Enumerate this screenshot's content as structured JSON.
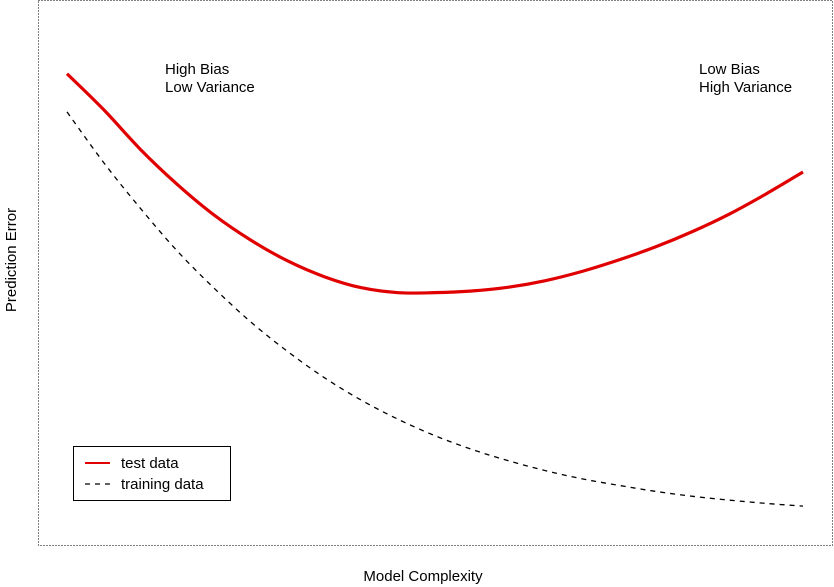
{
  "chart_data": {
    "type": "line",
    "title": "",
    "xlabel": "Model Complexity",
    "ylabel": "Prediction Error",
    "xlim": [
      0,
      1
    ],
    "ylim": [
      0,
      1
    ],
    "grid": false,
    "ticks": false,
    "legend": "bottom-left",
    "annotations": [
      {
        "lines": [
          "High Bias",
          "Low Variance"
        ],
        "position": "top-left"
      },
      {
        "lines": [
          "Low Bias",
          "High Variance"
        ],
        "position": "top-right"
      }
    ],
    "series": [
      {
        "name": "test data",
        "color": "#e00000",
        "style": "solid",
        "x": [
          0.0,
          0.05,
          0.1,
          0.15,
          0.2,
          0.25,
          0.3,
          0.35,
          0.4,
          0.45,
          0.5,
          0.55,
          0.6,
          0.65,
          0.7,
          0.75,
          0.8,
          0.85,
          0.9,
          0.95,
          1.0
        ],
        "y": [
          0.865,
          0.799,
          0.726,
          0.662,
          0.606,
          0.56,
          0.522,
          0.493,
          0.473,
          0.464,
          0.464,
          0.467,
          0.474,
          0.486,
          0.503,
          0.524,
          0.548,
          0.576,
          0.608,
          0.645,
          0.685
        ]
      },
      {
        "name": "training data",
        "color": "#000000",
        "style": "dashed",
        "x": [
          0.0,
          0.05,
          0.1,
          0.15,
          0.2,
          0.25,
          0.3,
          0.35,
          0.4,
          0.45,
          0.5,
          0.55,
          0.6,
          0.65,
          0.7,
          0.75,
          0.8,
          0.85,
          0.9,
          0.95,
          1.0
        ],
        "y": [
          0.795,
          0.702,
          0.618,
          0.54,
          0.472,
          0.41,
          0.356,
          0.308,
          0.267,
          0.232,
          0.202,
          0.177,
          0.156,
          0.138,
          0.123,
          0.111,
          0.1,
          0.091,
          0.084,
          0.078,
          0.073
        ]
      }
    ]
  }
}
